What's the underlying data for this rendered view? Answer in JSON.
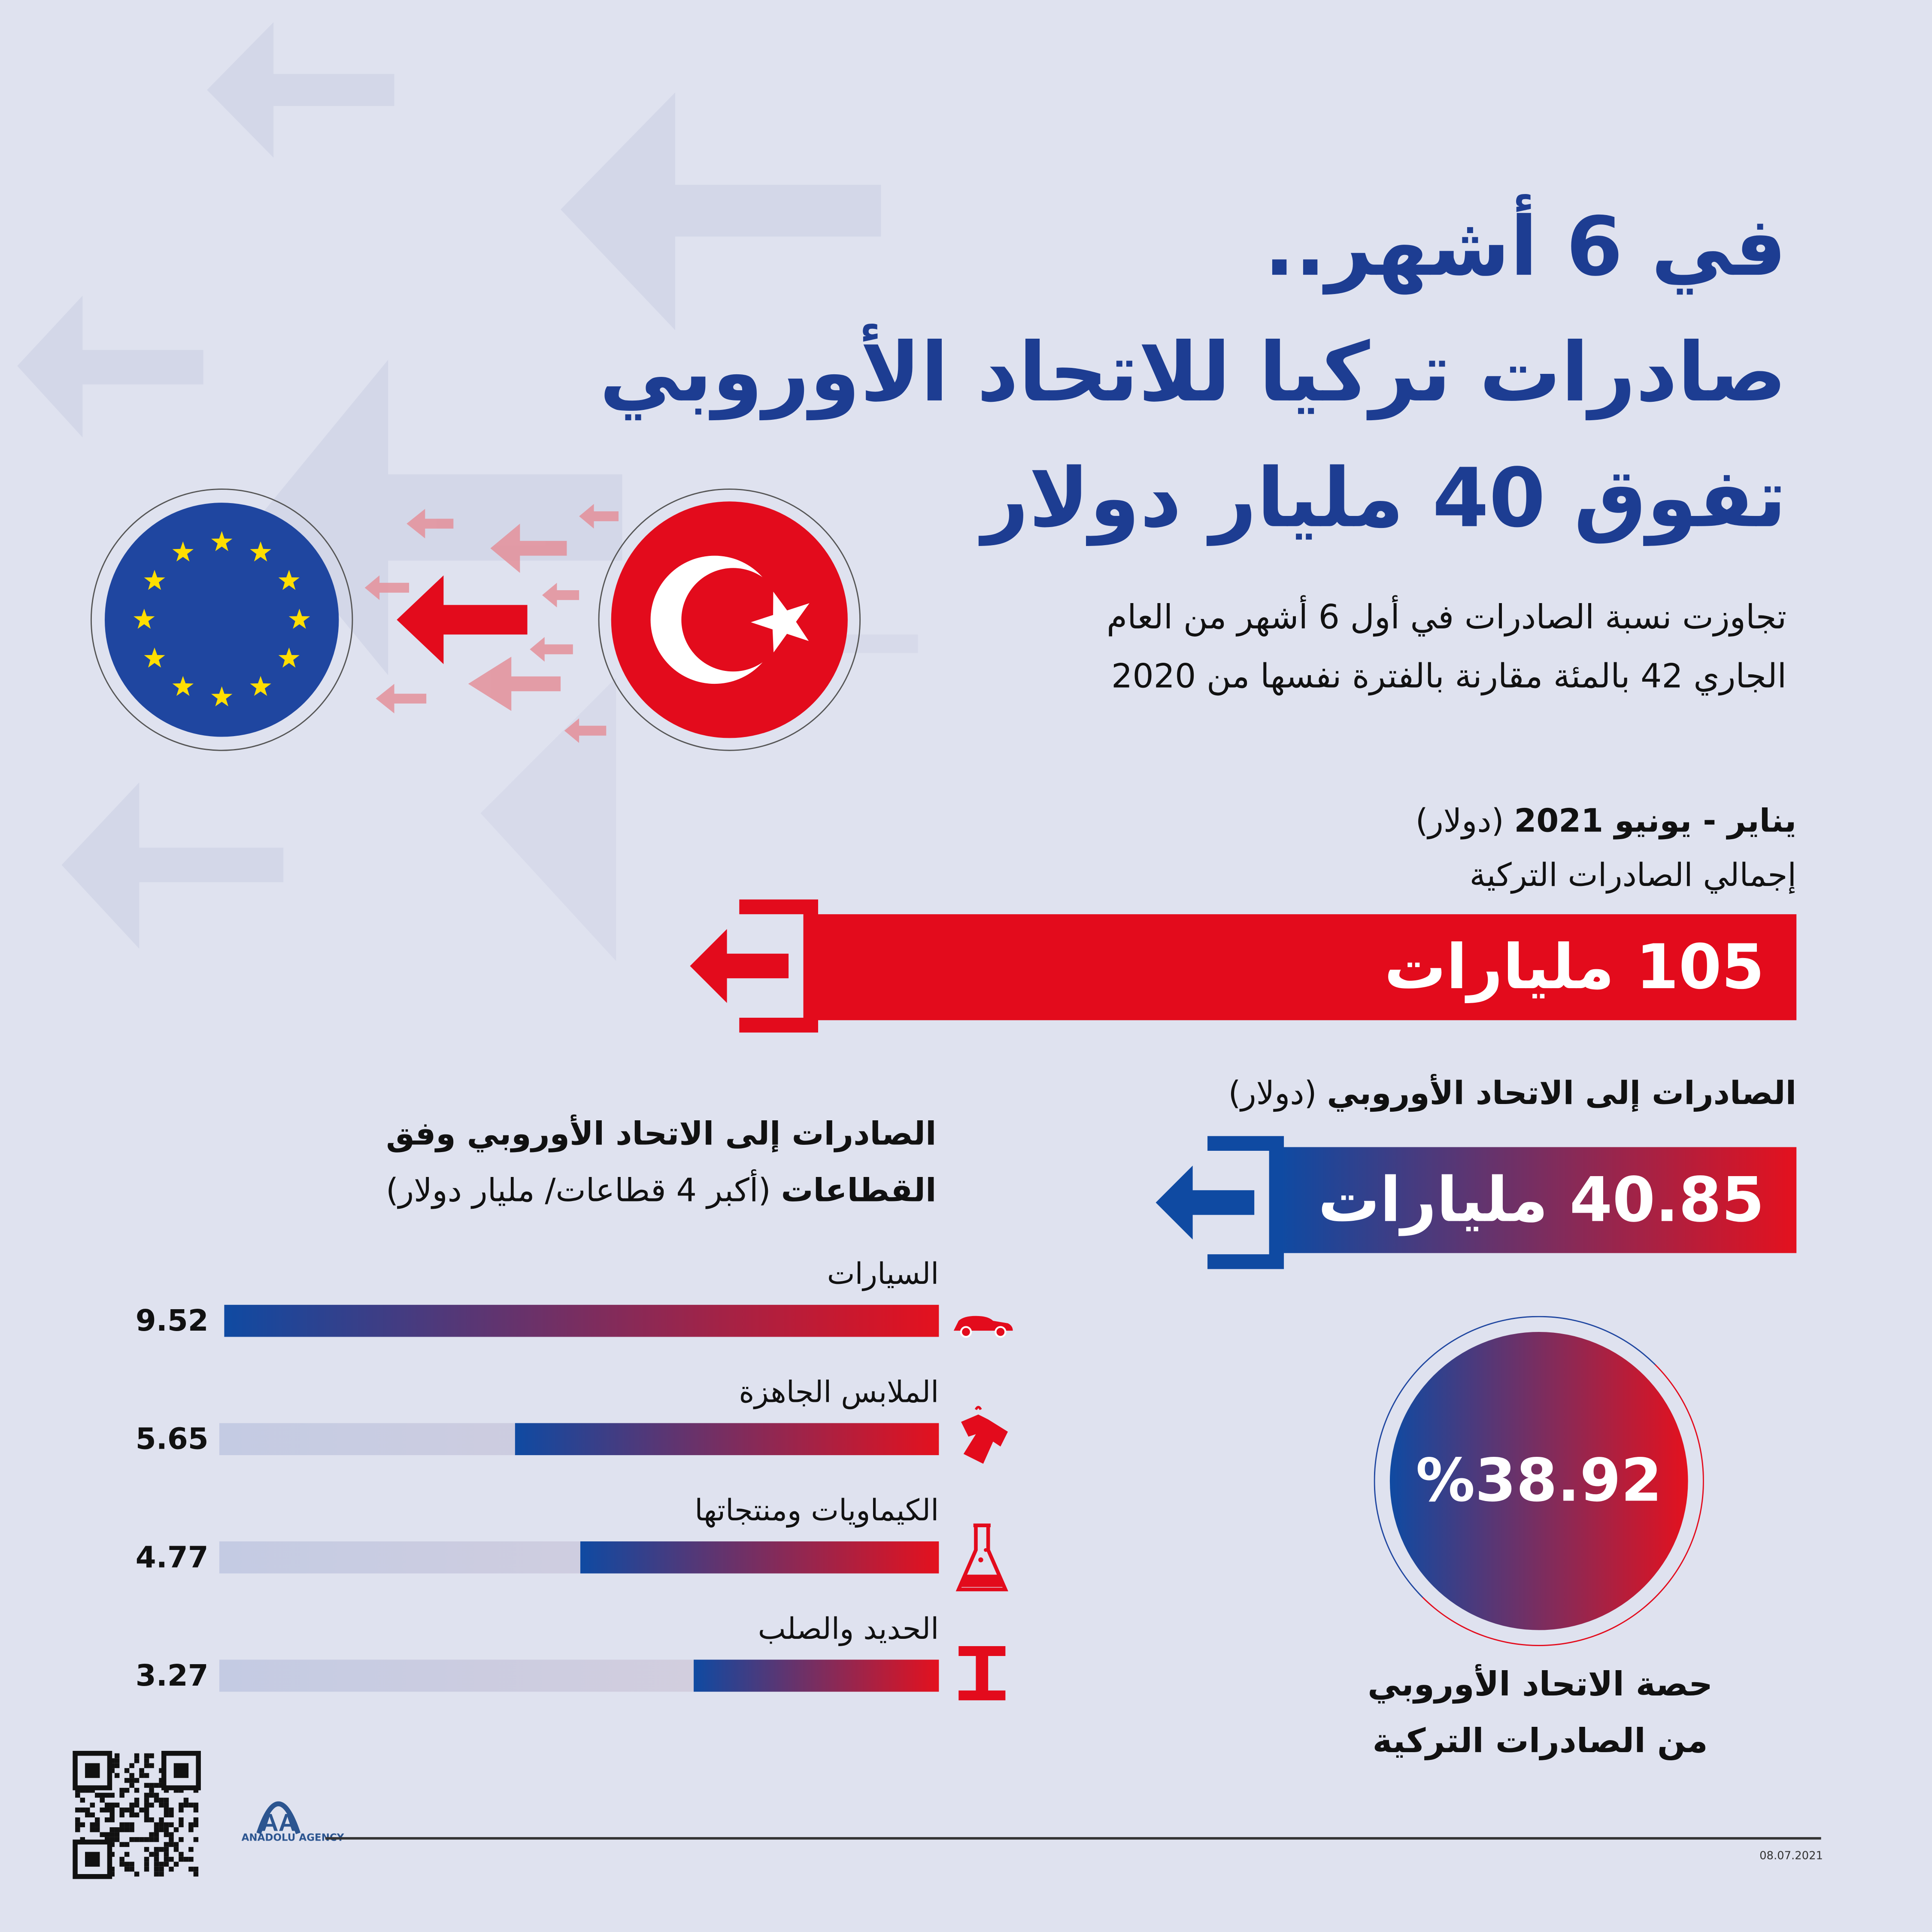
{
  "title_lines": [
    "في 6 أشهر..",
    "صادرات تركيا للاتحاد الأوروبي",
    "تفوق 40 مليار دولار"
  ],
  "subtitle_lines": [
    "تجاوزت نسبة الصادرات في أول 6 أشهر من العام",
    "الجاري 42 بالمئة مقارنة بالفترة نفسها من 2020"
  ],
  "total": {
    "period_bold": "يناير - يونيو 2021",
    "unit": "(دولار)",
    "label": "إجمالي الصادرات التركية",
    "value": "105 مليارات",
    "color": "#e30b1c"
  },
  "eu": {
    "label_bold": "الصادرات إلى الاتحاد الأوروبي",
    "unit": "(دولار)",
    "value": "40.85 مليارات"
  },
  "share": {
    "value": "%38.92",
    "label_lines": [
      "حصة الاتحاد الأوروبي",
      "من الصادرات التركية"
    ]
  },
  "chart_data": {
    "type": "bar",
    "title_bold_1": "الصادرات إلى الاتحاد الأوروبي وفق",
    "title_bold_2": "القطاعات",
    "title_note": "(أكبر 4 قطاعات/ مليار دولار)",
    "categories": [
      "السيارات",
      "الملابس الجاهزة",
      "الكيماويات ومنتجاتها",
      "الحديد والصلب"
    ],
    "values": [
      9.52,
      5.65,
      4.77,
      3.27
    ],
    "labels": [
      "9.52",
      "5.65",
      "4.77",
      "3.27"
    ],
    "icons": [
      "car-icon",
      "tshirt-icon",
      "flask-icon",
      "steel-beam-icon"
    ],
    "max": 9.52
  },
  "footer": {
    "logo_text": "ANADOLU AGENCY",
    "date": "08.07.2021"
  },
  "colors": {
    "navy": "#1d3d92",
    "red": "#e30b1c",
    "blue": "#0f4aa2",
    "background": "#dfe2ef"
  }
}
